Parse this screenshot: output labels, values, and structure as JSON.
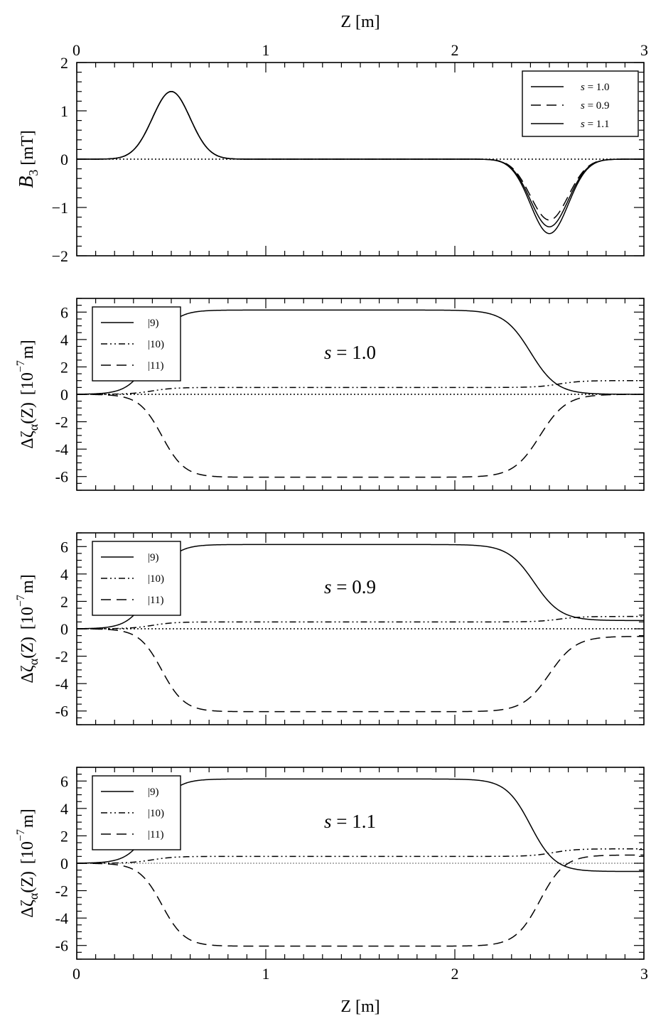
{
  "chart_data": [
    {
      "type": "line",
      "xlabel_top": "Z [m]",
      "ylabel": "B_3 [mT]",
      "ylabel_main": "B",
      "ylabel_sub": "3",
      "ylabel_unit": "[mT]",
      "xlim": [
        0,
        3
      ],
      "ylim": [
        -2,
        2
      ],
      "x_ticks": [
        0,
        1,
        2,
        3
      ],
      "y_ticks": [
        2,
        1,
        0,
        -1,
        -2
      ],
      "x_tick_labels": [
        "0",
        "1",
        "2",
        "3"
      ],
      "y_tick_labels": [
        "2",
        "1",
        "0",
        "−1",
        "−2"
      ],
      "legend_position": "top-right",
      "series": [
        {
          "name": "s = 1.0",
          "style": "solid",
          "components": [
            {
              "center": 0.5,
              "amplitude": 1.4,
              "width": 0.1
            },
            {
              "center": 2.5,
              "amplitude": -1.4,
              "width": 0.1
            }
          ]
        },
        {
          "name": "s = 0.9",
          "style": "dashed",
          "components": [
            {
              "center": 0.5,
              "amplitude": 1.4,
              "width": 0.1
            },
            {
              "center": 2.5,
              "amplitude": -1.26,
              "width": 0.1
            }
          ]
        },
        {
          "name": "s = 1.1",
          "style": "solid",
          "components": [
            {
              "center": 0.5,
              "amplitude": 1.4,
              "width": 0.1
            },
            {
              "center": 2.5,
              "amplitude": -1.54,
              "width": 0.1
            }
          ]
        }
      ],
      "reference_line": 0
    },
    {
      "type": "line",
      "annotation": "s = 1.0",
      "annotation_var": "s",
      "annotation_val": " = 1.0",
      "ylabel": "Δζ_α(Z) [10^-7 m]",
      "xlim": [
        0,
        3
      ],
      "ylim": [
        -7,
        7
      ],
      "y_ticks": [
        6,
        4,
        2,
        0,
        -2,
        -4,
        -6
      ],
      "y_tick_labels": [
        "6",
        "4",
        "2",
        "0",
        "-2",
        "-4",
        "-6"
      ],
      "legend_position": "top-left",
      "series": [
        {
          "name": "|9)",
          "style": "solid",
          "steps": [
            {
              "center": 0.4,
              "height": 6.15,
              "width": 0.06
            },
            {
              "center": 2.4,
              "height": -6.15,
              "width": 0.07
            }
          ]
        },
        {
          "name": "|10)",
          "style": "dash-dot-dot",
          "steps": [
            {
              "center": 0.4,
              "height": 0.5,
              "width": 0.06
            },
            {
              "center": 2.55,
              "height": 0.5,
              "width": 0.06
            }
          ]
        },
        {
          "name": "|11)",
          "style": "dashed",
          "steps": [
            {
              "center": 0.45,
              "height": -6.05,
              "width": 0.06
            },
            {
              "center": 2.45,
              "height": 6.05,
              "width": 0.07
            }
          ]
        }
      ],
      "reference_line": 0
    },
    {
      "type": "line",
      "annotation": "s = 0.9",
      "annotation_var": "s",
      "annotation_val": " = 0.9",
      "ylabel": "Δζ_α(Z) [10^-7 m]",
      "xlim": [
        0,
        3
      ],
      "ylim": [
        -7,
        7
      ],
      "y_ticks": [
        6,
        4,
        2,
        0,
        -2,
        -4,
        -6
      ],
      "y_tick_labels": [
        "6",
        "4",
        "2",
        "0",
        "-2",
        "-4",
        "-6"
      ],
      "legend_position": "top-left",
      "series": [
        {
          "name": "|9)",
          "style": "solid",
          "steps": [
            {
              "center": 0.4,
              "height": 6.15,
              "width": 0.06
            },
            {
              "center": 2.42,
              "height": -5.55,
              "width": 0.07
            }
          ]
        },
        {
          "name": "|10)",
          "style": "dash-dot-dot",
          "steps": [
            {
              "center": 0.4,
              "height": 0.5,
              "width": 0.06
            },
            {
              "center": 2.55,
              "height": 0.4,
              "width": 0.06
            }
          ]
        },
        {
          "name": "|11)",
          "style": "dashed",
          "steps": [
            {
              "center": 0.45,
              "height": -6.05,
              "width": 0.06
            },
            {
              "center": 2.5,
              "height": 5.5,
              "width": 0.07
            }
          ]
        }
      ],
      "reference_line": 0
    },
    {
      "type": "line",
      "annotation": "s = 1.1",
      "annotation_var": "s",
      "annotation_val": " = 1.1",
      "xlabel_bottom": "Z [m]",
      "ylabel": "Δζ_α(Z) [10^-7 m]",
      "xlim": [
        0,
        3
      ],
      "ylim": [
        -7,
        7
      ],
      "x_tick_labels": [
        "0",
        "1",
        "2",
        "3"
      ],
      "y_ticks": [
        6,
        4,
        2,
        0,
        -2,
        -4,
        -6
      ],
      "y_tick_labels": [
        "6",
        "4",
        "2",
        "0",
        "-2",
        "-4",
        "-6"
      ],
      "legend_position": "top-left",
      "series": [
        {
          "name": "|9)",
          "style": "solid",
          "steps": [
            {
              "center": 0.4,
              "height": 6.15,
              "width": 0.06
            },
            {
              "center": 2.4,
              "height": -6.75,
              "width": 0.065
            }
          ]
        },
        {
          "name": "|10)",
          "style": "dash-dot-dot",
          "steps": [
            {
              "center": 0.4,
              "height": 0.5,
              "width": 0.06
            },
            {
              "center": 2.52,
              "height": 0.55,
              "width": 0.06
            }
          ]
        },
        {
          "name": "|11)",
          "style": "dashed",
          "steps": [
            {
              "center": 0.45,
              "height": -6.05,
              "width": 0.06
            },
            {
              "center": 2.45,
              "height": 6.65,
              "width": 0.065
            }
          ]
        }
      ],
      "reference_line": 0
    }
  ],
  "ylabel_delta_zeta": "Δζ",
  "ylabel_alpha": "α",
  "ylabel_arg": "(Z)",
  "ylabel_bracket_open": "[10",
  "ylabel_exponent": "−7",
  "ylabel_unit_close": "m]"
}
